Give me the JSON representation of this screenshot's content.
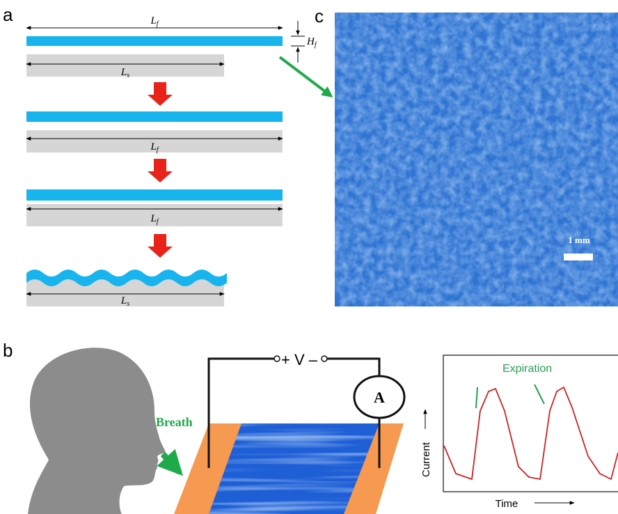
{
  "panel_labels": {
    "a": "a",
    "b": "b",
    "c": "c"
  },
  "panel_a": {
    "film_length": {
      "symbol": "L",
      "subscript": "f"
    },
    "film_thickness": {
      "symbol": "H",
      "subscript": "f"
    },
    "substrate_length": {
      "symbol": "L",
      "subscript": "s"
    }
  },
  "panel_c": {
    "scale_bar": "1 mm"
  },
  "panel_b": {
    "breath": "Breath",
    "voltage": "+ V –",
    "ammeter": "A",
    "annotation": "Expiration",
    "y_axis": "Current",
    "x_axis": "Time"
  }
}
